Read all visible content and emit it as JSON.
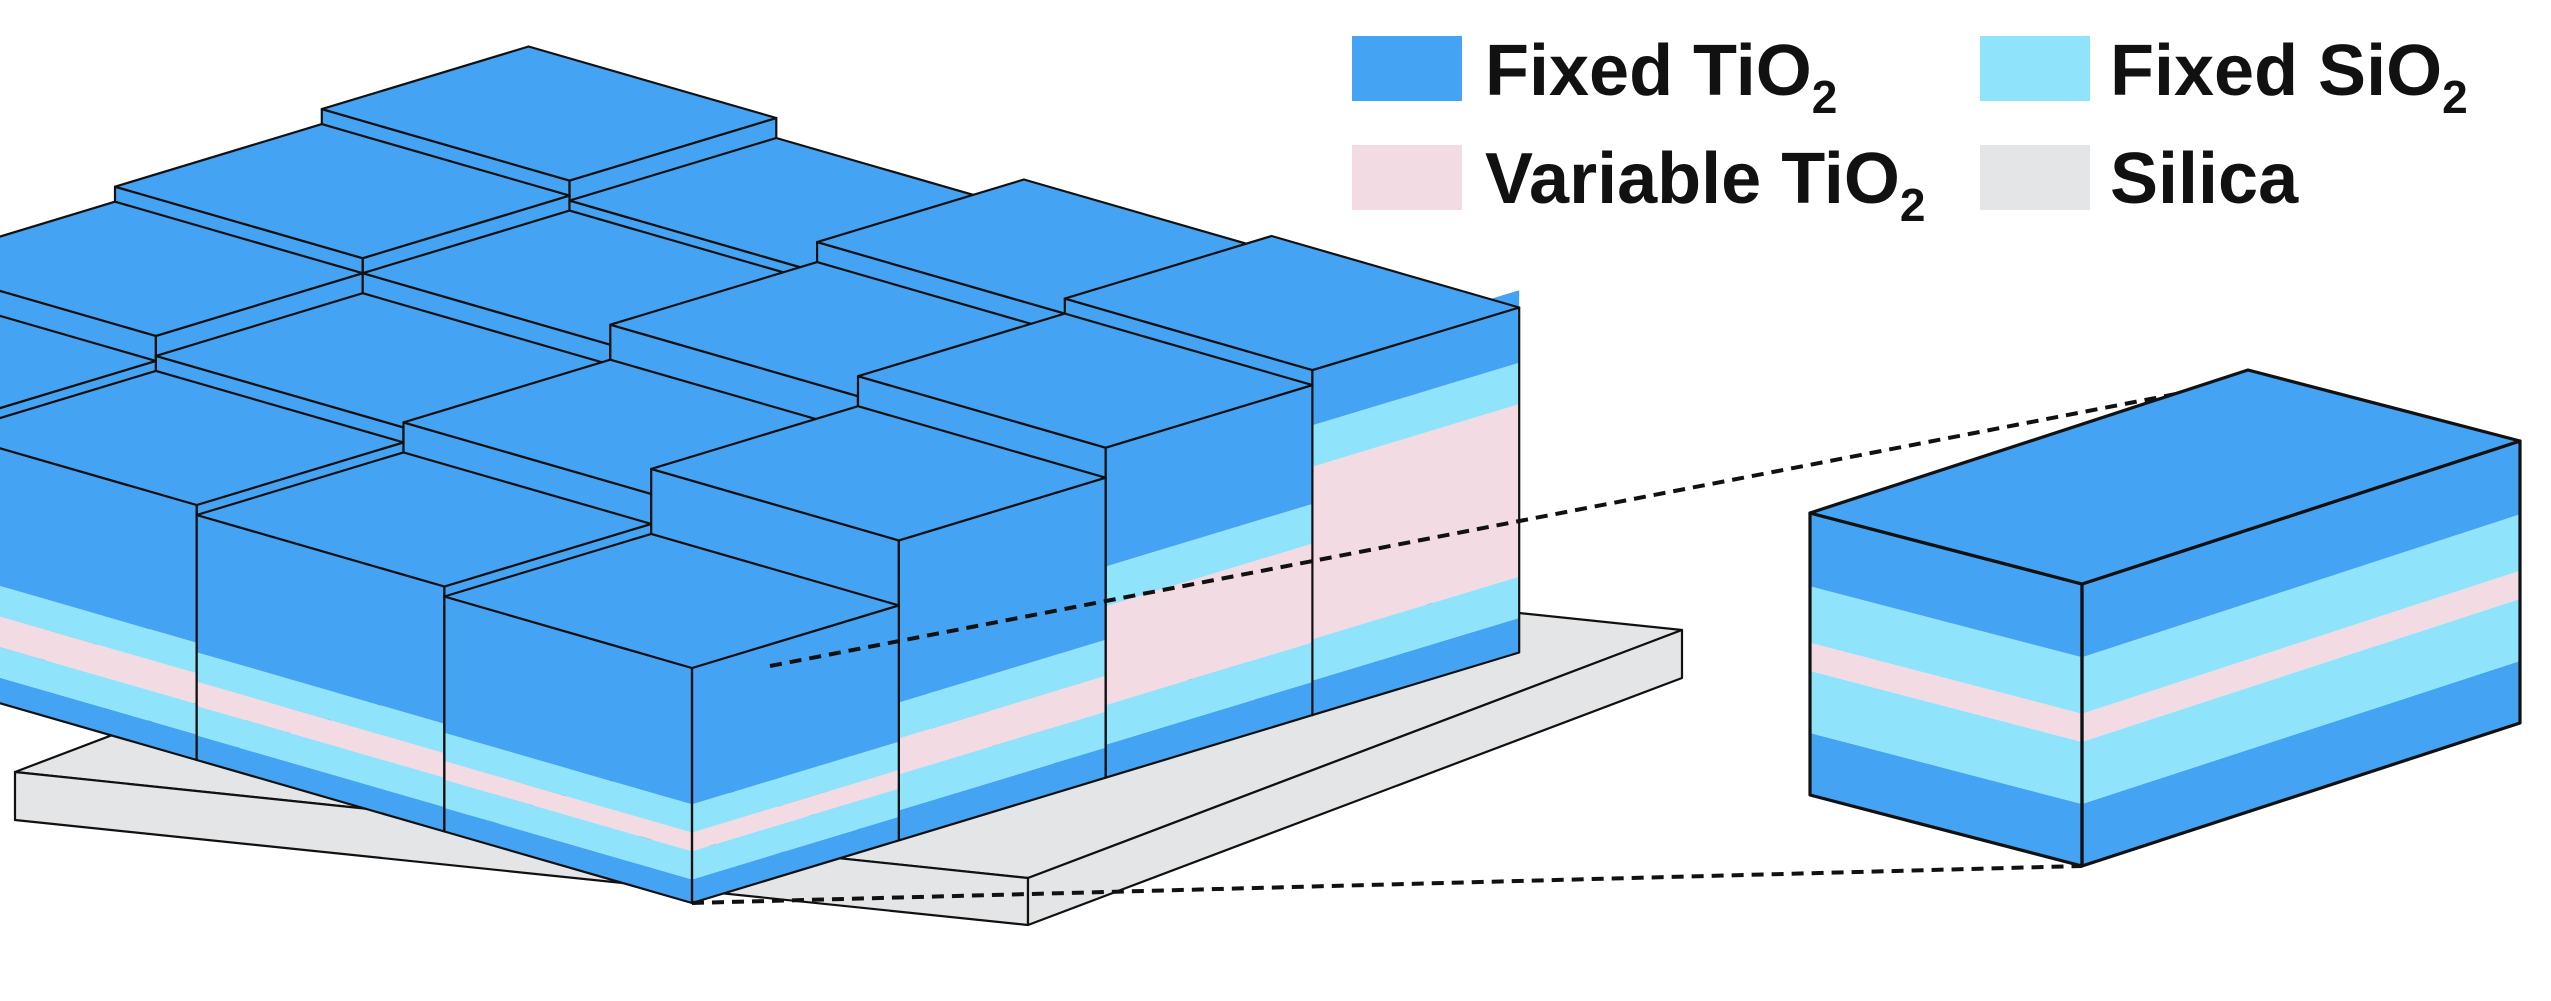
{
  "colors": {
    "fixed_tio2": "#44a3f3",
    "fixed_sio2": "#8fe4fb",
    "variable_tio2": "#f2dbe3",
    "silica": "#e4e5e6",
    "outline": "#111111"
  },
  "legend": [
    {
      "key": "fixed_tio2",
      "label": "Fixed TiO",
      "sub": "2"
    },
    {
      "key": "fixed_sio2",
      "label": "Fixed SiO",
      "sub": "2"
    },
    {
      "key": "variable_tio2",
      "label": "Variable TiO",
      "sub": "2"
    },
    {
      "key": "silica",
      "label": "Silica",
      "sub": ""
    }
  ]
}
